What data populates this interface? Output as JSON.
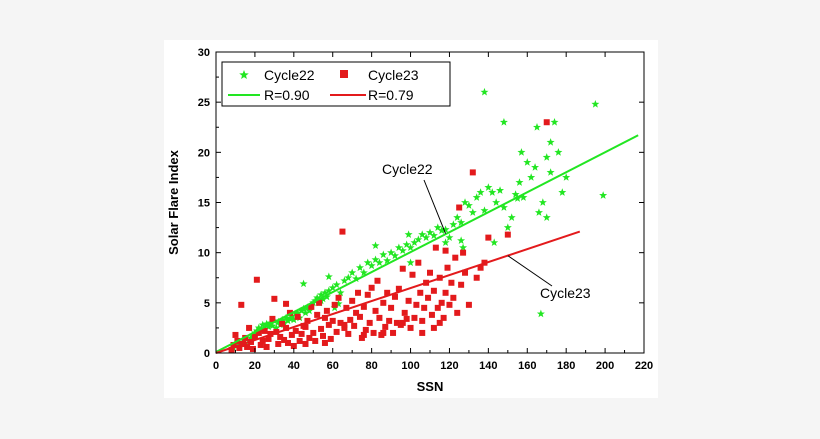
{
  "chart_data": {
    "type": "scatter",
    "title": "",
    "xlabel": "SSN",
    "ylabel": "Solar Flare Index",
    "xlim": [
      0,
      220
    ],
    "ylim": [
      0,
      30
    ],
    "xticks": [
      0,
      20,
      40,
      60,
      80,
      100,
      120,
      140,
      160,
      180,
      200,
      220
    ],
    "yticks": [
      0,
      5,
      10,
      15,
      20,
      25,
      30
    ],
    "grid": false,
    "legend_position": "top-left",
    "series": [
      {
        "name": "Cycle22",
        "marker": "star",
        "color": "#22e622",
        "fit_label": "R=0.90",
        "fit_line": [
          [
            0,
            0.1
          ],
          [
            217,
            21.7
          ]
        ],
        "points": [
          [
            9,
            0.5
          ],
          [
            11,
            0.8
          ],
          [
            12,
            1.0
          ],
          [
            14,
            1.3
          ],
          [
            15,
            0.9
          ],
          [
            17,
            1.2
          ],
          [
            18,
            1.5
          ],
          [
            19,
            1.8
          ],
          [
            20,
            2.0
          ],
          [
            21,
            2.2
          ],
          [
            22,
            2.5
          ],
          [
            23,
            2.3
          ],
          [
            24,
            2.8
          ],
          [
            25,
            2.4
          ],
          [
            26,
            2.9
          ],
          [
            27,
            2.6
          ],
          [
            28,
            3.0
          ],
          [
            29,
            2.7
          ],
          [
            30,
            3.2
          ],
          [
            31,
            2.5
          ],
          [
            32,
            3.1
          ],
          [
            33,
            2.8
          ],
          [
            34,
            3.3
          ],
          [
            35,
            3.0
          ],
          [
            36,
            3.5
          ],
          [
            37,
            3.2
          ],
          [
            38,
            3.4
          ],
          [
            39,
            3.7
          ],
          [
            40,
            3.3
          ],
          [
            41,
            3.9
          ],
          [
            42,
            4.0
          ],
          [
            43,
            3.5
          ],
          [
            44,
            4.2
          ],
          [
            45,
            4.4
          ],
          [
            46,
            4.0
          ],
          [
            47,
            4.5
          ],
          [
            48,
            4.2
          ],
          [
            49,
            4.8
          ],
          [
            50,
            5.0
          ],
          [
            51,
            5.2
          ],
          [
            52,
            5.5
          ],
          [
            53,
            5.0
          ],
          [
            54,
            5.8
          ],
          [
            55,
            5.4
          ],
          [
            56,
            6.0
          ],
          [
            57,
            5.6
          ],
          [
            58,
            6.2
          ],
          [
            60,
            6.5
          ],
          [
            62,
            6.8
          ],
          [
            64,
            6.0
          ],
          [
            66,
            7.2
          ],
          [
            68,
            7.5
          ],
          [
            70,
            8.0
          ],
          [
            72,
            7.4
          ],
          [
            74,
            8.5
          ],
          [
            76,
            8.0
          ],
          [
            78,
            9.0
          ],
          [
            80,
            8.7
          ],
          [
            82,
            9.3
          ],
          [
            84,
            9.0
          ],
          [
            86,
            9.8
          ],
          [
            88,
            9.2
          ],
          [
            90,
            10.0
          ],
          [
            92,
            9.7
          ],
          [
            94,
            10.5
          ],
          [
            96,
            10.2
          ],
          [
            98,
            10.8
          ],
          [
            100,
            10.5
          ],
          [
            102,
            11.0
          ],
          [
            104,
            11.3
          ],
          [
            106,
            11.8
          ],
          [
            108,
            11.5
          ],
          [
            110,
            12.0
          ],
          [
            112,
            11.7
          ],
          [
            114,
            12.5
          ],
          [
            116,
            12.2
          ],
          [
            118,
            11.0
          ],
          [
            120,
            11.5
          ],
          [
            122,
            12.8
          ],
          [
            124,
            13.5
          ],
          [
            126,
            13.0
          ],
          [
            128,
            15.0
          ],
          [
            130,
            14.7
          ],
          [
            132,
            14.0
          ],
          [
            134,
            15.5
          ],
          [
            136,
            16.0
          ],
          [
            138,
            14.2
          ],
          [
            140,
            16.5
          ],
          [
            142,
            16.0
          ],
          [
            144,
            15.0
          ],
          [
            146,
            16.2
          ],
          [
            148,
            14.5
          ],
          [
            150,
            12.5
          ],
          [
            152,
            13.5
          ],
          [
            154,
            15.8
          ],
          [
            156,
            17.0
          ],
          [
            158,
            15.5
          ],
          [
            160,
            19.0
          ],
          [
            162,
            17.5
          ],
          [
            164,
            18.5
          ],
          [
            166,
            14.0
          ],
          [
            168,
            15.0
          ],
          [
            170,
            19.5
          ],
          [
            172,
            18.0
          ],
          [
            174,
            23.0
          ],
          [
            176,
            20.0
          ],
          [
            178,
            16.0
          ],
          [
            180,
            17.5
          ],
          [
            138,
            26.0
          ],
          [
            148,
            23.0
          ],
          [
            165,
            22.5
          ],
          [
            195,
            24.8
          ],
          [
            199,
            15.7
          ],
          [
            167,
            3.9
          ],
          [
            61,
            4.5
          ],
          [
            45,
            6.9
          ],
          [
            54,
            5.2
          ],
          [
            58,
            7.6
          ],
          [
            63,
            4.9
          ],
          [
            82,
            10.7
          ],
          [
            99,
            11.8
          ],
          [
            118,
            12.3
          ],
          [
            127,
            10.5
          ],
          [
            143,
            11.0
          ],
          [
            155,
            15.4
          ],
          [
            157,
            20.0
          ],
          [
            170,
            13.5
          ],
          [
            172,
            21.0
          ],
          [
            126,
            11.2
          ],
          [
            100,
            9.0
          ]
        ]
      },
      {
        "name": "Cycle23",
        "marker": "square",
        "color": "#e31a1c",
        "fit_label": "R=0.79",
        "fit_line": [
          [
            0,
            0.0
          ],
          [
            187,
            12.1
          ]
        ],
        "points": [
          [
            8,
            0.3
          ],
          [
            9,
            0.8
          ],
          [
            10,
            1.8
          ],
          [
            11,
            1.2
          ],
          [
            12,
            0.5
          ],
          [
            13,
            4.8
          ],
          [
            14,
            0.9
          ],
          [
            15,
            1.5
          ],
          [
            16,
            0.6
          ],
          [
            17,
            2.5
          ],
          [
            18,
            1.1
          ],
          [
            19,
            0.4
          ],
          [
            20,
            1.6
          ],
          [
            21,
            7.3
          ],
          [
            22,
            2.0
          ],
          [
            23,
            0.8
          ],
          [
            24,
            1.2
          ],
          [
            25,
            2.2
          ],
          [
            26,
            0.6
          ],
          [
            27,
            1.4
          ],
          [
            28,
            1.9
          ],
          [
            29,
            3.4
          ],
          [
            30,
            5.4
          ],
          [
            31,
            2.1
          ],
          [
            32,
            0.9
          ],
          [
            33,
            1.6
          ],
          [
            34,
            2.9
          ],
          [
            35,
            1.3
          ],
          [
            36,
            2.5
          ],
          [
            37,
            1.0
          ],
          [
            38,
            4.0
          ],
          [
            39,
            1.8
          ],
          [
            40,
            0.7
          ],
          [
            41,
            2.2
          ],
          [
            42,
            3.6
          ],
          [
            43,
            1.2
          ],
          [
            44,
            1.9
          ],
          [
            45,
            2.7
          ],
          [
            46,
            0.9
          ],
          [
            47,
            3.2
          ],
          [
            48,
            1.5
          ],
          [
            49,
            4.6
          ],
          [
            50,
            2.0
          ],
          [
            51,
            1.2
          ],
          [
            52,
            3.8
          ],
          [
            53,
            5.0
          ],
          [
            54,
            2.4
          ],
          [
            55,
            1.7
          ],
          [
            56,
            3.5
          ],
          [
            57,
            4.2
          ],
          [
            58,
            2.8
          ],
          [
            59,
            1.4
          ],
          [
            60,
            3.2
          ],
          [
            61,
            4.8
          ],
          [
            62,
            2.1
          ],
          [
            63,
            5.5
          ],
          [
            64,
            3.0
          ],
          [
            65,
            12.1
          ],
          [
            66,
            2.5
          ],
          [
            67,
            4.5
          ],
          [
            68,
            1.9
          ],
          [
            69,
            3.3
          ],
          [
            70,
            5.2
          ],
          [
            71,
            2.7
          ],
          [
            72,
            4.0
          ],
          [
            73,
            6.0
          ],
          [
            74,
            3.6
          ],
          [
            75,
            1.5
          ],
          [
            76,
            4.6
          ],
          [
            77,
            2.3
          ],
          [
            78,
            5.8
          ],
          [
            79,
            3.0
          ],
          [
            80,
            6.5
          ],
          [
            81,
            2.0
          ],
          [
            82,
            4.2
          ],
          [
            83,
            7.2
          ],
          [
            84,
            3.5
          ],
          [
            85,
            1.8
          ],
          [
            86,
            5.0
          ],
          [
            87,
            2.6
          ],
          [
            88,
            6.0
          ],
          [
            89,
            3.2
          ],
          [
            90,
            4.5
          ],
          [
            91,
            2.0
          ],
          [
            92,
            5.6
          ],
          [
            93,
            3.0
          ],
          [
            94,
            6.4
          ],
          [
            95,
            2.8
          ],
          [
            96,
            8.4
          ],
          [
            97,
            4.0
          ],
          [
            98,
            3.4
          ],
          [
            99,
            5.2
          ],
          [
            100,
            2.5
          ],
          [
            101,
            7.8
          ],
          [
            102,
            3.5
          ],
          [
            103,
            4.8
          ],
          [
            104,
            9.0
          ],
          [
            105,
            6.0
          ],
          [
            106,
            3.2
          ],
          [
            107,
            4.5
          ],
          [
            108,
            7.0
          ],
          [
            109,
            5.5
          ],
          [
            110,
            8.0
          ],
          [
            111,
            3.8
          ],
          [
            112,
            6.2
          ],
          [
            113,
            10.5
          ],
          [
            114,
            4.5
          ],
          [
            115,
            7.5
          ],
          [
            116,
            5.0
          ],
          [
            117,
            3.5
          ],
          [
            118,
            6.0
          ],
          [
            119,
            8.5
          ],
          [
            120,
            4.8
          ],
          [
            121,
            7.0
          ],
          [
            122,
            5.5
          ],
          [
            123,
            9.5
          ],
          [
            124,
            4.0
          ],
          [
            125,
            14.5
          ],
          [
            126,
            6.8
          ],
          [
            127,
            10.0
          ],
          [
            128,
            8.0
          ],
          [
            130,
            4.8
          ],
          [
            132,
            18.0
          ],
          [
            134,
            7.5
          ],
          [
            136,
            8.5
          ],
          [
            138,
            9.0
          ],
          [
            140,
            11.5
          ],
          [
            150,
            11.8
          ],
          [
            170,
            23.0
          ],
          [
            112,
            2.5
          ],
          [
            115,
            3.0
          ],
          [
            118,
            10.2
          ],
          [
            106,
            2.0
          ],
          [
            96,
            3.0
          ],
          [
            86,
            2.0
          ],
          [
            76,
            1.8
          ],
          [
            66,
            2.8
          ],
          [
            56,
            1.0
          ],
          [
            46,
            2.6
          ],
          [
            36,
            4.9
          ]
        ]
      }
    ],
    "annotations": [
      {
        "text": "Cycle22",
        "target_series": "Cycle22"
      },
      {
        "text": "Cycle23",
        "target_series": "Cycle23"
      }
    ]
  }
}
